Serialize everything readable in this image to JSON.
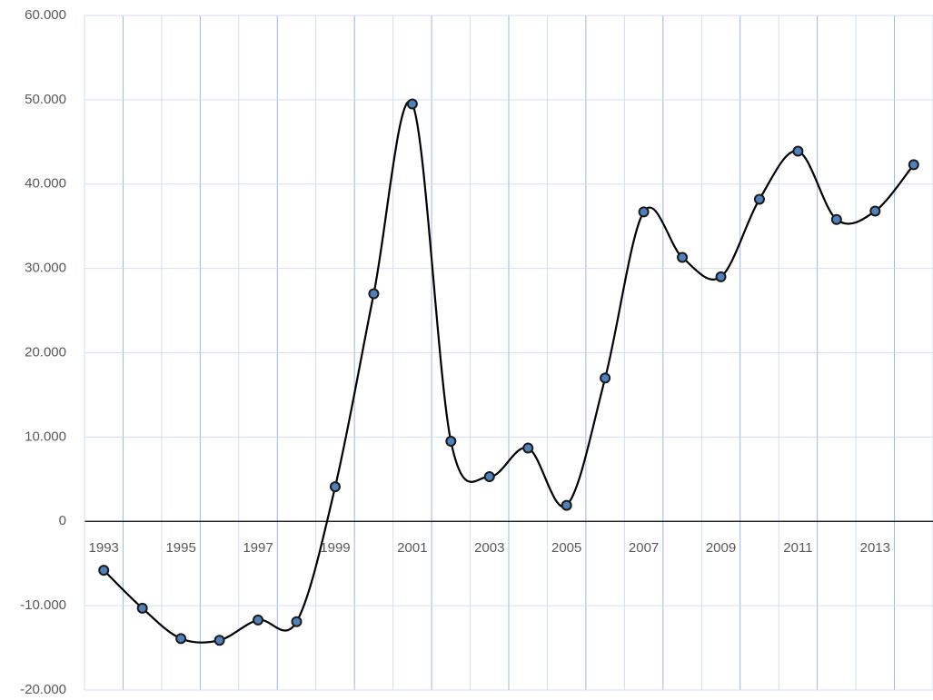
{
  "chart_data": {
    "type": "line",
    "smooth": true,
    "grid": true,
    "categories": [
      "1993",
      null,
      "1995",
      null,
      "1997",
      null,
      "1999",
      null,
      "2001",
      null,
      "2003",
      null,
      "2005",
      null,
      "2007",
      null,
      "2009",
      null,
      "2011",
      null,
      "2013",
      null
    ],
    "series": [
      {
        "color": "#000000",
        "marker_color": "#4f81bd",
        "values": [
          -5800,
          -10300,
          -13900,
          -14100,
          -11700,
          -11900,
          4100,
          27000,
          49500,
          9500,
          5300,
          8700,
          1900,
          17000,
          36700,
          31300,
          29000,
          38200,
          43900,
          35800,
          36800,
          42300
        ]
      }
    ],
    "ylim": [
      -20000,
      60000
    ],
    "yticks": [
      {
        "value": -20000,
        "label": "-20.000"
      },
      {
        "value": -10000,
        "label": "-10.000"
      },
      0,
      {
        "value": 10000,
        "label": "10.000"
      },
      {
        "value": 20000,
        "label": "20.000"
      },
      {
        "value": 30000,
        "label": "30.000"
      },
      {
        "value": 40000,
        "label": "40.000"
      },
      {
        "value": 50000,
        "label": "50.000"
      },
      {
        "value": 60000,
        "label": "60.000"
      }
    ]
  }
}
